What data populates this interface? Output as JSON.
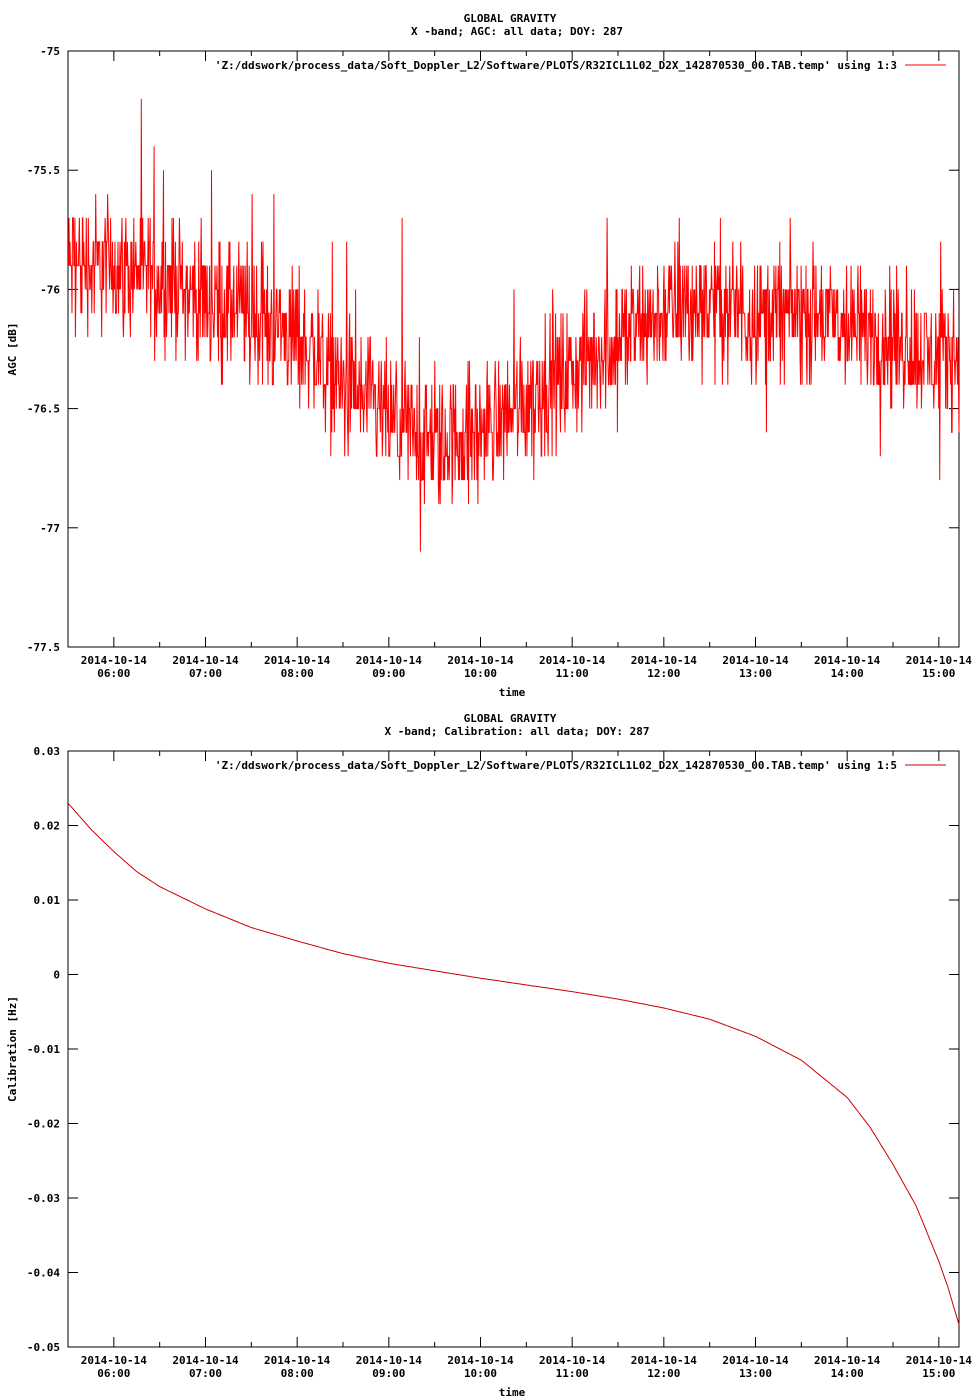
{
  "chart_data": [
    {
      "type": "line",
      "title": "GLOBAL GRAVITY",
      "subtitle": "X -band; AGC: all data; DOY: 287",
      "xlabel": "time",
      "ylabel": "AGC [dB]",
      "ylim": [
        -77.5,
        -75
      ],
      "yticks": [
        "-75",
        "-75.5",
        "-76",
        "-76.5",
        "-77",
        "-77.5"
      ],
      "ytick_values": [
        -75,
        -75.5,
        -76,
        -76.5,
        -77,
        -77.5
      ],
      "x_range_hours": [
        5.5,
        15.22
      ],
      "xtick_hours": [
        6,
        7,
        8,
        9,
        10,
        11,
        12,
        13,
        14,
        15
      ],
      "xticks_date": [
        "2014-10-14",
        "2014-10-14",
        "2014-10-14",
        "2014-10-14",
        "2014-10-14",
        "2014-10-14",
        "2014-10-14",
        "2014-10-14",
        "2014-10-14",
        "2014-10-14"
      ],
      "xticks_time": [
        "06:00",
        "07:00",
        "08:00",
        "09:00",
        "10:00",
        "11:00",
        "12:00",
        "13:00",
        "14:00",
        "15:00"
      ],
      "grid": false,
      "legend": "top-right",
      "series": [
        {
          "name": "'Z:/ddswork/process_data/Soft_Doppler_L2/Software/PLOTS/R32ICL1L02_D2X_142870530_00.TAB.temp' using 1:3",
          "color": "#ff0000",
          "trend_hours": [
            5.5,
            6.0,
            6.5,
            7.0,
            7.5,
            8.0,
            8.5,
            9.0,
            9.5,
            10.0,
            10.5,
            11.0,
            11.5,
            12.0,
            12.5,
            13.0,
            13.5,
            14.0,
            14.5,
            15.0,
            15.22
          ],
          "trend_values": [
            -75.9,
            -75.9,
            -75.95,
            -76.05,
            -76.1,
            -76.2,
            -76.4,
            -76.55,
            -76.65,
            -76.6,
            -76.45,
            -76.35,
            -76.2,
            -76.1,
            -76.05,
            -76.1,
            -76.1,
            -76.15,
            -76.2,
            -76.3,
            -76.25
          ],
          "spread_db": 0.25,
          "min_value": -77.3,
          "max_value": -75.2
        }
      ]
    },
    {
      "type": "line",
      "title": "GLOBAL GRAVITY",
      "subtitle": "X -band; Calibration: all data; DOY: 287",
      "xlabel": "time",
      "ylabel": "Calibration [Hz]",
      "ylim": [
        -0.05,
        0.03
      ],
      "yticks": [
        "0.03",
        "0.02",
        "0.01",
        "0",
        "-0.01",
        "-0.02",
        "-0.03",
        "-0.04",
        "-0.05"
      ],
      "ytick_values": [
        0.03,
        0.02,
        0.01,
        0,
        -0.01,
        -0.02,
        -0.03,
        -0.04,
        -0.05
      ],
      "x_range_hours": [
        5.5,
        15.22
      ],
      "xtick_hours": [
        6,
        7,
        8,
        9,
        10,
        11,
        12,
        13,
        14,
        15
      ],
      "xticks_date": [
        "2014-10-14",
        "2014-10-14",
        "2014-10-14",
        "2014-10-14",
        "2014-10-14",
        "2014-10-14",
        "2014-10-14",
        "2014-10-14",
        "2014-10-14",
        "2014-10-14"
      ],
      "xticks_time": [
        "06:00",
        "07:00",
        "08:00",
        "09:00",
        "10:00",
        "11:00",
        "12:00",
        "13:00",
        "14:00",
        "15:00"
      ],
      "grid": false,
      "legend": "top-right",
      "series": [
        {
          "name": "'Z:/ddswork/process_data/Soft_Doppler_L2/Software/PLOTS/R32ICL1L02_D2X_142870530_00.TAB.temp' using 1:5",
          "color": "#cc0000",
          "x_hours": [
            5.5,
            5.75,
            6.0,
            6.25,
            6.5,
            7.0,
            7.5,
            8.0,
            8.5,
            9.0,
            9.5,
            10.0,
            10.5,
            11.0,
            11.5,
            12.0,
            12.5,
            13.0,
            13.5,
            14.0,
            14.25,
            14.5,
            14.75,
            15.0,
            15.1,
            15.22
          ],
          "values": [
            0.023,
            0.0195,
            0.0165,
            0.0138,
            0.0118,
            0.0088,
            0.0063,
            0.0045,
            0.0028,
            0.0015,
            0.0005,
            -0.0005,
            -0.0014,
            -0.0023,
            -0.0033,
            -0.0045,
            -0.006,
            -0.0083,
            -0.0115,
            -0.0165,
            -0.0205,
            -0.0255,
            -0.031,
            -0.0385,
            -0.042,
            -0.047
          ]
        }
      ]
    }
  ]
}
